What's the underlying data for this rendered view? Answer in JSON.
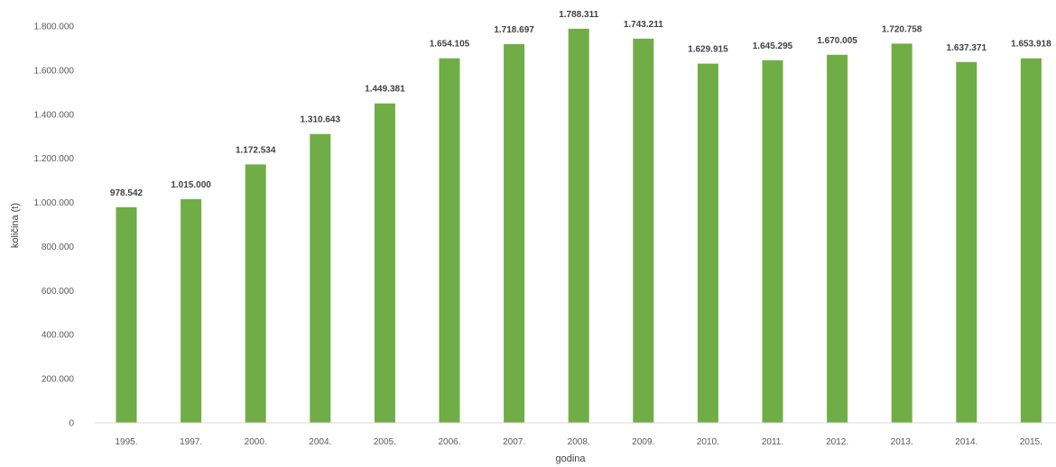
{
  "chart_data": {
    "type": "bar",
    "title": "",
    "xlabel": "godina",
    "ylabel": "količina (t)",
    "categories": [
      "1995.",
      "1997.",
      "2000.",
      "2004.",
      "2005.",
      "2006.",
      "2007.",
      "2008.",
      "2009.",
      "2010.",
      "2011.",
      "2012.",
      "2013.",
      "2014.",
      "2015."
    ],
    "values": [
      978542,
      1015000,
      1172534,
      1310643,
      1449381,
      1654105,
      1718697,
      1788311,
      1743211,
      1629915,
      1645295,
      1670005,
      1720758,
      1637371,
      1653918
    ],
    "value_labels": [
      "978.542",
      "1.015.000",
      "1.172.534",
      "1.310.643",
      "1.449.381",
      "1.654.105",
      "1.718.697",
      "1.788.311",
      "1.743.211",
      "1.629.915",
      "1.645.295",
      "1.670.005",
      "1.720.758",
      "1.637.371",
      "1.653.918"
    ],
    "ylim": [
      0,
      1800000
    ],
    "yticks": [
      0,
      200000,
      400000,
      600000,
      800000,
      1000000,
      1200000,
      1400000,
      1600000,
      1800000
    ],
    "ytick_labels": [
      "0",
      "200.000",
      "400.000",
      "600.000",
      "800.000",
      "1.000.000",
      "1.200.000",
      "1.400.000",
      "1.600.000",
      "1.800.000"
    ],
    "bar_color": "#70ad47",
    "grid": false,
    "legend": "none"
  }
}
